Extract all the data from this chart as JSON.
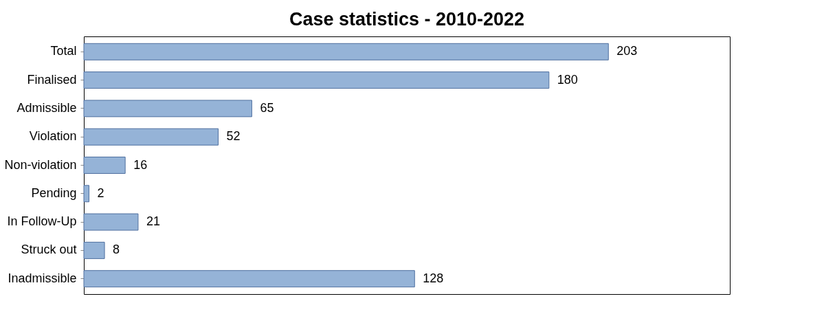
{
  "chart_data": {
    "type": "bar",
    "orientation": "horizontal",
    "title": "Case statistics - 2010-2022",
    "categories": [
      "Total",
      "Finalised",
      "Admissible",
      "Violation",
      "Non-violation",
      "Pending",
      "In Follow-Up",
      "Struck out",
      "Inadmissible"
    ],
    "values": [
      203,
      180,
      65,
      52,
      16,
      2,
      21,
      8,
      128
    ],
    "color": "#95b3d7",
    "data_labels": true,
    "xlim": [
      0,
      250
    ],
    "tick_labels": "y",
    "grid": false
  }
}
